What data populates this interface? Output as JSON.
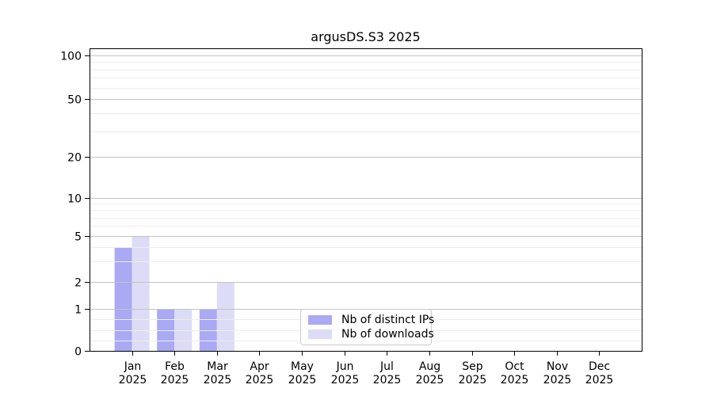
{
  "chart_data": {
    "type": "bar",
    "title": "argusDS.S3 2025",
    "x_tick_labels": [
      [
        "Jan",
        "2025"
      ],
      [
        "Feb",
        "2025"
      ],
      [
        "Mar",
        "2025"
      ],
      [
        "Apr",
        "2025"
      ],
      [
        "May",
        "2025"
      ],
      [
        "Jun",
        "2025"
      ],
      [
        "Jul",
        "2025"
      ],
      [
        "Aug",
        "2025"
      ],
      [
        "Sep",
        "2025"
      ],
      [
        "Oct",
        "2025"
      ],
      [
        "Nov",
        "2025"
      ],
      [
        "Dec",
        "2025"
      ]
    ],
    "series": [
      {
        "name": "Nb of distinct IPs",
        "color": "#a9a9f4",
        "values": [
          4,
          1,
          1,
          0,
          0,
          0,
          0,
          0,
          0,
          0,
          0,
          0
        ]
      },
      {
        "name": "Nb of downloads",
        "color": "#dcdcf6",
        "values": [
          5,
          1,
          2,
          0,
          0,
          0,
          0,
          0,
          0,
          0,
          0,
          0
        ]
      }
    ],
    "y_axis": {
      "scale": "symlog",
      "ticks": [
        0,
        1,
        2,
        5,
        10,
        20,
        50,
        100
      ],
      "minor_ticks": [
        0.25,
        0.5,
        0.75,
        3,
        4,
        6,
        7,
        8,
        9,
        30,
        40,
        60,
        70,
        80,
        90
      ],
      "range": [
        0,
        112
      ]
    },
    "grid": {
      "horizontal_major": true,
      "horizontal_minor": true,
      "major_color": "#c3c3c3",
      "minor_color": "#ededed"
    },
    "legend": {
      "position": "lower center",
      "items": [
        {
          "label": "Nb of distinct IPs",
          "color": "#a9a9f4"
        },
        {
          "label": "Nb of downloads",
          "color": "#dcdcf6"
        }
      ]
    },
    "axis_color": "#000000",
    "background": "#ffffff"
  }
}
